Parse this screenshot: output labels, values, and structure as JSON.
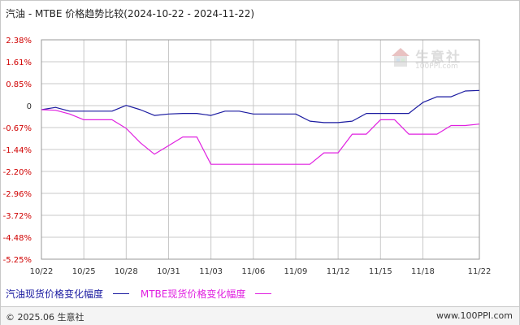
{
  "title": "汽油 - MTBE 价格趋势比较(2024-10-22 - 2024-11-22)",
  "footer": {
    "copyright": "© 2025.06 生意社",
    "url": "www.100PPI.com"
  },
  "watermark": {
    "text": "生意社",
    "url": "100PPI.com"
  },
  "colors": {
    "series1": "#1a1aa0",
    "series2": "#e020e0",
    "ytick_positive": "#d00000",
    "ytick_zero": "#333333",
    "ytick_negative": "#d00000",
    "grid": "#c8c8c8"
  },
  "chart_data": {
    "type": "line",
    "x": [
      "10/22",
      "10/23",
      "10/24",
      "10/25",
      "10/26",
      "10/27",
      "10/28",
      "10/29",
      "10/30",
      "10/31",
      "11/01",
      "11/02",
      "11/03",
      "11/04",
      "11/05",
      "11/06",
      "11/07",
      "11/08",
      "11/09",
      "11/10",
      "11/11",
      "11/12",
      "11/13",
      "11/14",
      "11/15",
      "11/16",
      "11/17",
      "11/18",
      "11/19",
      "11/20",
      "11/21",
      "11/22"
    ],
    "xticks": [
      "10/22",
      "10/25",
      "10/28",
      "10/31",
      "11/03",
      "11/06",
      "11/09",
      "11/12",
      "11/15",
      "11/18",
      "11/22"
    ],
    "yticks": [
      "2.38%",
      "1.61%",
      "0.85%",
      "0",
      "-0.67%",
      "-1.44%",
      "-2.20%",
      "-2.96%",
      "-3.72%",
      "-4.48%",
      "-5.25%"
    ],
    "ylim": [
      -5.25,
      2.38
    ],
    "grid": true,
    "legend": "bottom-left",
    "series": [
      {
        "name": "汽油现货价格变化幅度",
        "values": [
          -0.05,
          0.03,
          -0.1,
          -0.1,
          -0.1,
          -0.1,
          0.1,
          -0.05,
          -0.25,
          -0.2,
          -0.18,
          -0.18,
          -0.25,
          -0.1,
          -0.1,
          -0.2,
          -0.2,
          -0.2,
          -0.2,
          -0.45,
          -0.5,
          -0.5,
          -0.45,
          -0.18,
          -0.18,
          -0.18,
          -0.18,
          0.2,
          0.4,
          0.4,
          0.6,
          0.62
        ]
      },
      {
        "name": "MTBE现货价格变化幅度",
        "values": [
          -0.05,
          -0.07,
          -0.2,
          -0.4,
          -0.4,
          -0.4,
          -0.7,
          -1.2,
          -1.6,
          -1.3,
          -1.0,
          -1.0,
          -1.95,
          -1.95,
          -1.95,
          -1.95,
          -1.95,
          -1.95,
          -1.95,
          -1.95,
          -1.55,
          -1.55,
          -0.9,
          -0.9,
          -0.4,
          -0.4,
          -0.9,
          -0.9,
          -0.9,
          -0.6,
          -0.6,
          -0.55
        ]
      }
    ]
  }
}
